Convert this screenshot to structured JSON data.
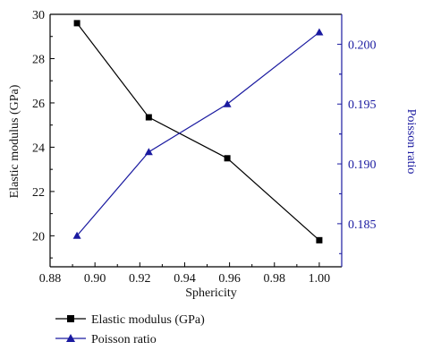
{
  "chart_data": {
    "type": "line",
    "title": "",
    "xlabel": "Sphericity",
    "ylabel_left": "Elastic modulus (GPa)",
    "ylabel_right": "Poisson ratio",
    "xlim": [
      0.88,
      1.01
    ],
    "ylim_left": [
      18.6,
      30
    ],
    "ylim_right": [
      0.1814,
      0.2025
    ],
    "x_ticks": [
      "0.88",
      "0.90",
      "0.92",
      "0.94",
      "0.96",
      "0.98",
      "1.00"
    ],
    "y_left_ticks": [
      "20",
      "22",
      "24",
      "26",
      "28",
      "30"
    ],
    "y_right_ticks": [
      "0.185",
      "0.190",
      "0.195",
      "0.200"
    ],
    "grid": false,
    "legend_position": "bottom-left",
    "series": [
      {
        "name": "Elastic modulus (GPa)",
        "axis": "left",
        "marker": "square",
        "color": "#000000",
        "x": [
          0.892,
          0.924,
          0.959,
          1.0
        ],
        "y": [
          29.6,
          25.35,
          23.5,
          19.8
        ]
      },
      {
        "name": "Poisson ratio",
        "axis": "right",
        "marker": "triangle",
        "color": "#1a1aa0",
        "x": [
          0.892,
          0.924,
          0.959,
          1.0
        ],
        "y": [
          0.184,
          0.191,
          0.195,
          0.201
        ]
      }
    ]
  }
}
